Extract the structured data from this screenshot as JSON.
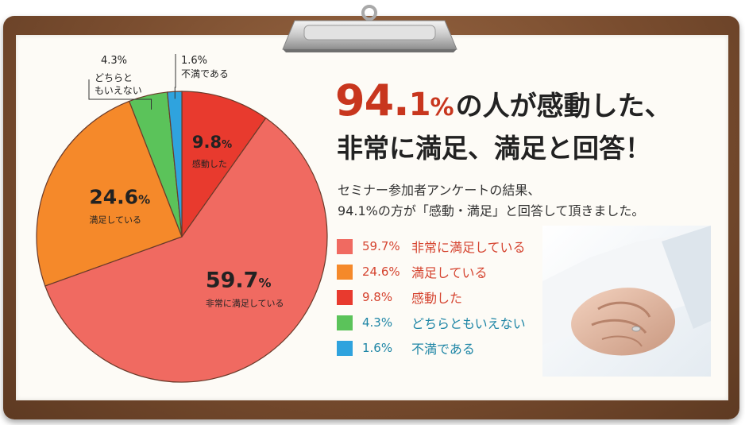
{
  "headline": {
    "big_number": "94.",
    "decimal": "1",
    "percent": "%",
    "rest": "の人が感動した、",
    "line2": "非常に満足、満足と回答！"
  },
  "description": {
    "line1": "セミナー参加者アンケートの結果、",
    "line2": "94.1%の方が「感動・満足」と回答して頂きました。"
  },
  "chart_data": {
    "type": "pie",
    "slices": [
      {
        "label": "感動した",
        "value": 9.8,
        "display": "9.8",
        "color": "#e83a2e",
        "legend": "感動した",
        "legend_pct": "9.8%"
      },
      {
        "label": "非常に満足している",
        "value": 59.7,
        "display": "59.7",
        "color": "#f06a61",
        "legend": "非常に満足している",
        "legend_pct": "59.7%"
      },
      {
        "label": "満足している",
        "value": 24.6,
        "display": "24.6",
        "color": "#f5892a",
        "legend": "満足している",
        "legend_pct": "24.6%"
      },
      {
        "label": "どちらともいえない",
        "value": 4.3,
        "display": "4.3",
        "color": "#5bc35a",
        "legend": "どちらともいえない",
        "legend_pct": "4.3%"
      },
      {
        "label": "不満である",
        "value": 1.6,
        "display": "1.6",
        "color": "#2fa3de",
        "legend": "不満である",
        "legend_pct": "1.6%"
      }
    ],
    "outside_labels": {
      "neutral_pct": "4.3%",
      "neutral_line1": "どちらと",
      "neutral_line2": "もいえない",
      "dissat_pct": "1.6%",
      "dissat_label": "不満である"
    },
    "legend_order": [
      1,
      2,
      0,
      3,
      4
    ],
    "legend_text_colors": [
      "#d5432f",
      "#d5432f",
      "#d5432f",
      "#1f86a6",
      "#1f86a6"
    ],
    "grid": false,
    "legend_placement": "right"
  },
  "colors": {
    "board": "#7a4d2f",
    "headline_red": "#c8361e",
    "legend_red_text": "#d5432f",
    "legend_blue_text": "#1f86a6"
  },
  "icons": {
    "clip": "clipboard-clip-icon",
    "photo": "holding-hands-photo"
  }
}
